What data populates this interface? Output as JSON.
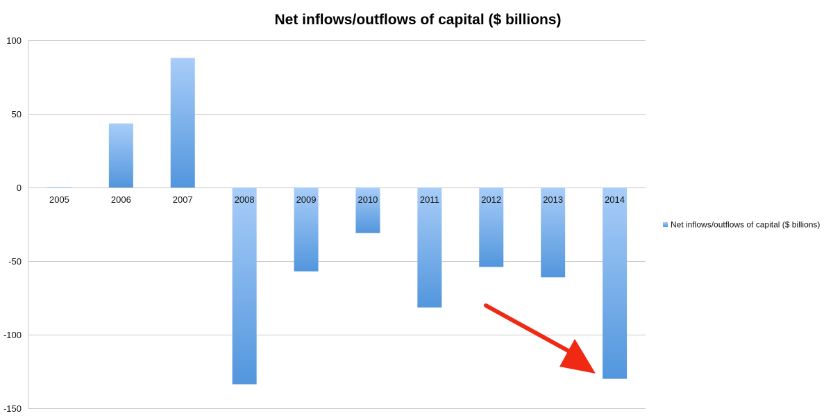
{
  "chart_data": {
    "type": "bar",
    "title": "Net inflows/outflows of capital ($ billions)",
    "xlabel": "",
    "ylabel": "",
    "categories": [
      "2005",
      "2006",
      "2007",
      "2008",
      "2009",
      "2010",
      "2011",
      "2012",
      "2013",
      "2014"
    ],
    "series": [
      {
        "name": "Net inflows/outflows of capital ($ billions)",
        "values": [
          -0.3,
          43.5,
          88,
          -133.7,
          -57,
          -31,
          -81.5,
          -54,
          -61,
          -130
        ]
      }
    ],
    "ylim": [
      -150,
      100
    ],
    "yticks": [
      "100",
      "50",
      "0",
      "-50",
      "-100",
      "-150"
    ],
    "grid": true,
    "legend_position": "right",
    "annotation": "red arrow pointing at the 2014 bar",
    "colors": {
      "bar_light": "#a8cdf8",
      "bar_dark": "#5296dd",
      "grid": "#c7c7c7",
      "arrow": "#f02a12"
    }
  }
}
